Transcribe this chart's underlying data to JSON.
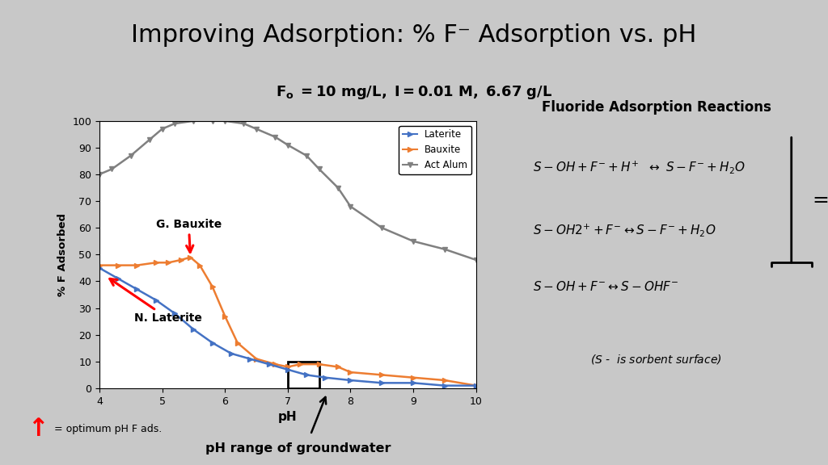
{
  "title": "Improving Adsorption: % F⁻ Adsorption vs. pH",
  "subtitle_bold": "F",
  "subtitle_sub": "o",
  "subtitle_rest": " = 10 mg/L, I = 0.01 M, 6.67 g/L",
  "bg_color": "#c8c8c8",
  "plot_bg": "#ffffff",
  "xlabel": "pH",
  "ylabel": "% F Adsorbed",
  "xlim": [
    4,
    10
  ],
  "ylim": [
    0,
    100
  ],
  "yticks": [
    0,
    10,
    20,
    30,
    40,
    50,
    60,
    70,
    80,
    90,
    100
  ],
  "xticks": [
    4,
    5,
    6,
    7,
    8,
    9,
    10
  ],
  "laterite_x": [
    4.0,
    4.3,
    4.6,
    4.9,
    5.2,
    5.5,
    5.8,
    6.1,
    6.4,
    6.7,
    7.0,
    7.3,
    7.6,
    8.0,
    8.5,
    9.0,
    9.5,
    10.0
  ],
  "laterite_y": [
    45,
    41,
    37,
    33,
    28,
    22,
    17,
    13,
    11,
    9,
    7,
    5,
    4,
    3,
    2,
    2,
    1,
    1
  ],
  "laterite_color": "#4472C4",
  "bauxite_x": [
    4.0,
    4.3,
    4.6,
    4.9,
    5.1,
    5.3,
    5.45,
    5.6,
    5.8,
    6.0,
    6.2,
    6.5,
    6.8,
    7.0,
    7.2,
    7.5,
    7.8,
    8.0,
    8.5,
    9.0,
    9.5,
    10.0
  ],
  "bauxite_y": [
    46,
    46,
    46,
    47,
    47,
    48,
    49,
    46,
    38,
    27,
    17,
    11,
    9,
    8,
    9,
    9,
    8,
    6,
    5,
    4,
    3,
    1
  ],
  "bauxite_color": "#ED7D31",
  "actalum_x": [
    4.0,
    4.2,
    4.5,
    4.8,
    5.0,
    5.2,
    5.5,
    5.8,
    6.0,
    6.3,
    6.5,
    6.8,
    7.0,
    7.3,
    7.5,
    7.8,
    8.0,
    8.5,
    9.0,
    9.5,
    10.0
  ],
  "actalum_y": [
    80,
    82,
    87,
    93,
    97,
    99,
    100,
    100,
    100,
    99,
    97,
    94,
    91,
    87,
    82,
    75,
    68,
    60,
    55,
    52,
    48
  ],
  "actalum_color": "#808080",
  "legend_labels": [
    "Laterite",
    "Bauxite",
    "Act Alum"
  ],
  "reaction_box_title": "Fluoride Adsorption Reactions",
  "reaction_footnote": "($S$ -  is sorbent surface)",
  "optimum_label": "= optimum pH F ads.",
  "groundwater_label": "pH range of groundwater",
  "bauxite_annotation": "G. Bauxite",
  "laterite_annotation": "N. Laterite"
}
